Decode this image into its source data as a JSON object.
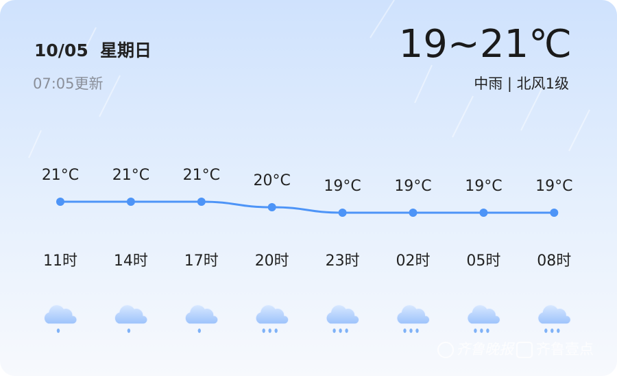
{
  "header": {
    "date": "10/05",
    "weekday": "星期日",
    "updated": "07:05更新",
    "temp_range": "19~21℃",
    "weather": "中雨 | 北风1级"
  },
  "chart_data": {
    "type": "line",
    "categories": [
      "11时",
      "14时",
      "17时",
      "20时",
      "23时",
      "02时",
      "05时",
      "08时"
    ],
    "values": [
      21,
      21,
      21,
      20,
      19,
      19,
      19,
      19
    ],
    "value_labels": [
      "21°C",
      "21°C",
      "21°C",
      "20°C",
      "19°C",
      "19°C",
      "19°C",
      "19°C"
    ],
    "color": "#4d94f7"
  },
  "watermark": {
    "paper": "齐鲁晚报",
    "app": "齐鲁壹点"
  }
}
